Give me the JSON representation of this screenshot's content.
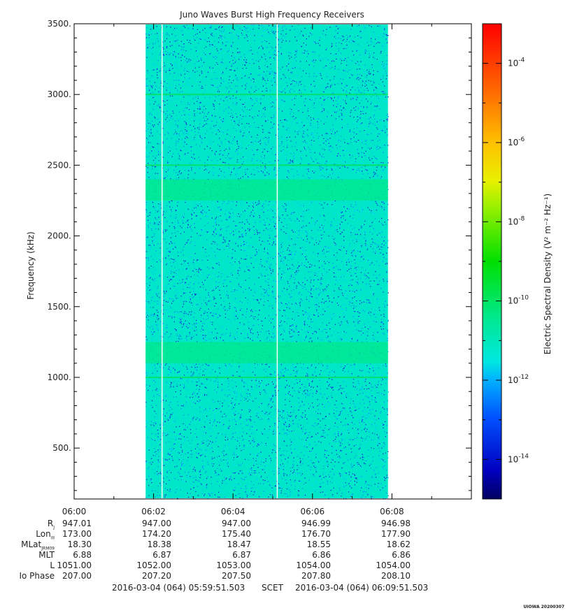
{
  "chart_data": {
    "type": "heatmap",
    "title": "Juno Waves Burst High Frequency Receivers",
    "ylabel": "Frequency (kHz)",
    "xlabel": "",
    "x_range": [
      "06:00",
      "06:10"
    ],
    "y_range": [
      140,
      3500
    ],
    "y_ticks": [
      500,
      1000,
      1500,
      2000,
      2500,
      3000,
      3500
    ],
    "y_tick_labels": [
      "500.",
      "1000.",
      "1500.",
      "2000.",
      "2500.",
      "3000.",
      "3500."
    ],
    "x_ticks": [
      "06:00",
      "06:02",
      "06:04",
      "06:06",
      "06:08"
    ],
    "data_span": [
      "06:01.8",
      "06:07.9"
    ],
    "data_gaps": [
      "06:02.2",
      "06:05.1"
    ],
    "background_level": "1e-12 to 1e-11",
    "enhanced_bands_khz": [
      [
        1100,
        1250
      ],
      [
        2250,
        2400
      ]
    ],
    "narrow_lines_khz": [
      1000,
      2500,
      3000
    ],
    "colorbar": {
      "label": "Electric Spectral Density (V² m⁻² Hz⁻¹)",
      "scale": "log",
      "min": "1e-15",
      "max": "1e-3",
      "tick_labels": [
        {
          "base": "10",
          "exp": "-4",
          "value": -4
        },
        {
          "base": "10",
          "exp": "-6",
          "value": -6
        },
        {
          "base": "10",
          "exp": "-8",
          "value": -8
        },
        {
          "base": "10",
          "exp": "-10",
          "value": -10
        },
        {
          "base": "10",
          "exp": "-12",
          "value": -12
        },
        {
          "base": "10",
          "exp": "-14",
          "value": -14
        }
      ]
    }
  },
  "ephemeris": {
    "labels": [
      {
        "main": "R",
        "sub": "J"
      },
      {
        "main": "Lon",
        "sub": "III"
      },
      {
        "main": "MLat",
        "sub": "JRM09"
      },
      {
        "main": "MLT",
        "sub": ""
      },
      {
        "main": "L",
        "sub": ""
      },
      {
        "main": "Io Phase",
        "sub": ""
      }
    ],
    "columns": [
      [
        "947.01",
        "173.00",
        "18.30",
        "6.88",
        "1051.00",
        "207.00"
      ],
      [
        "947.00",
        "174.20",
        "18.38",
        "6.87",
        "1052.00",
        "207.20"
      ],
      [
        "947.00",
        "175.40",
        "18.47",
        "6.87",
        "1053.00",
        "207.50"
      ],
      [
        "946.99",
        "176.70",
        "18.55",
        "6.86",
        "1054.00",
        "207.80"
      ],
      [
        "946.98",
        "177.90",
        "18.62",
        "6.86",
        "1054.00",
        "208.10"
      ]
    ]
  },
  "footer": {
    "start": "2016-03-04 (064) 05:59:51.503",
    "middle": "SCET",
    "end": "2016-03-04 (064) 06:09:51.503"
  },
  "watermark": "UIOWA 20200307"
}
